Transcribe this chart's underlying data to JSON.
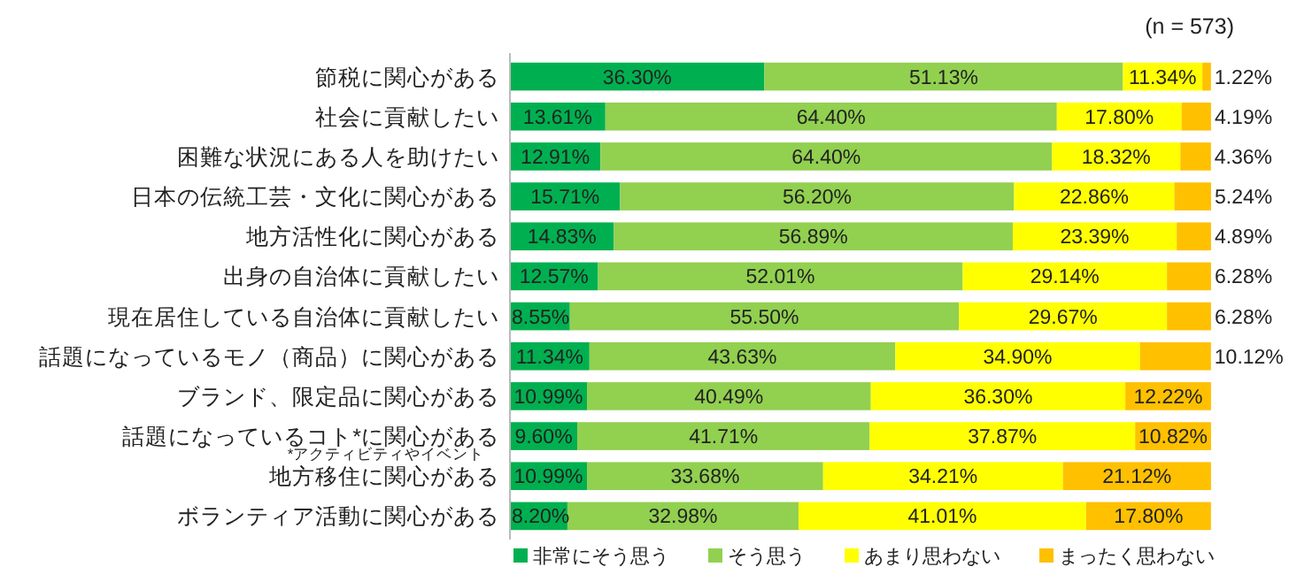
{
  "chart_data": {
    "type": "bar",
    "orientation": "horizontal",
    "stacked": true,
    "legend": "bottom",
    "annotations": [
      "(n = 573)",
      "*アクティビティやイベント"
    ],
    "categories": [
      "節税に関心がある",
      "社会に貢献したい",
      "困難な状況にある人を助けたい",
      "日本の伝統工芸・文化に関心がある",
      "地方活性化に関心がある",
      "出身の自治体に貢献したい",
      "現在居住している自治体に貢献したい",
      "話題になっているモノ（商品）に関心がある",
      "ブランド、限定品に関心がある",
      "話題になっているコト*に関心がある",
      "地方移住に関心がある",
      "ボランティア活動に関心がある"
    ],
    "series": [
      {
        "name": "非常にそう思う",
        "color": "#00b050",
        "values": [
          36.3,
          13.61,
          12.91,
          15.71,
          14.83,
          12.57,
          8.55,
          11.34,
          10.99,
          9.6,
          10.99,
          8.2
        ],
        "value_labels": [
          "36.30%",
          "13.61%",
          "12.91%",
          "15.71%",
          "14.83%",
          "12.57%",
          "8.55%",
          "11.34%",
          "10.99%",
          "9.60%",
          "10.99%",
          "8.20%"
        ]
      },
      {
        "name": "そう思う",
        "color": "#92d050",
        "values": [
          51.13,
          64.4,
          64.4,
          56.2,
          56.89,
          52.01,
          55.5,
          43.63,
          40.49,
          41.71,
          33.68,
          32.98
        ],
        "value_labels": [
          "51.13%",
          "64.40%",
          "64.40%",
          "56.20%",
          "56.89%",
          "52.01%",
          "55.50%",
          "43.63%",
          "40.49%",
          "41.71%",
          "33.68%",
          "32.98%"
        ]
      },
      {
        "name": "あまり思わない",
        "color": "#ffff00",
        "values": [
          11.34,
          17.8,
          18.32,
          22.86,
          23.39,
          29.14,
          29.67,
          34.9,
          36.3,
          37.87,
          34.21,
          41.01
        ],
        "value_labels": [
          "11.34%",
          "17.80%",
          "18.32%",
          "22.86%",
          "23.39%",
          "29.14%",
          "29.67%",
          "34.90%",
          "36.30%",
          "37.87%",
          "34.21%",
          "41.01%"
        ]
      },
      {
        "name": "まったく思わない",
        "color": "#ffc000",
        "values": [
          1.22,
          4.19,
          4.36,
          5.24,
          4.89,
          6.28,
          6.28,
          10.12,
          12.22,
          10.82,
          21.12,
          17.8
        ],
        "value_labels": [
          "1.22%",
          "4.19%",
          "4.36%",
          "5.24%",
          "4.89%",
          "6.28%",
          "6.28%",
          "10.12%",
          "12.22%",
          "10.82%",
          "21.12%",
          "17.80%"
        ]
      }
    ]
  }
}
